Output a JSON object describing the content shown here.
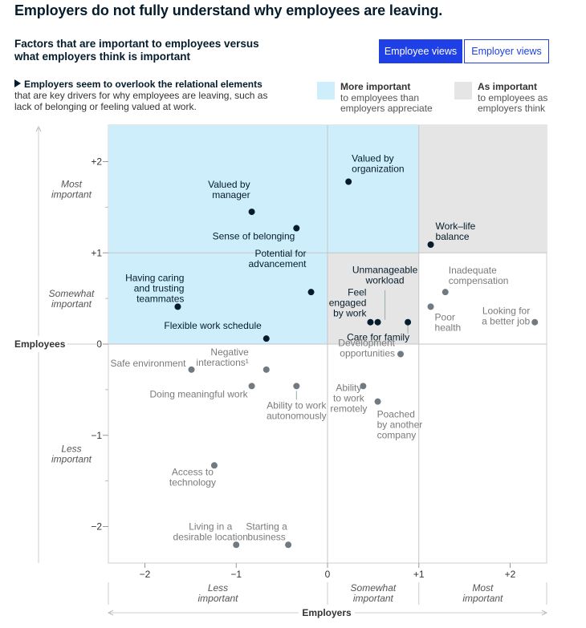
{
  "header": {
    "title": "Employers do not fully understand why employees are leaving.",
    "subtitle": "Factors that are important to employees versus what employers think is important"
  },
  "toggle": {
    "employee_label": "Employee views",
    "employer_label": "Employer views",
    "active": "Employee views"
  },
  "note": {
    "lead": "Employers seem to overlook the relational elements",
    "rest": "that are key drivers for why employees are leaving, such as lack of belonging or feeling valued at work."
  },
  "legend": {
    "more": {
      "title": "More important",
      "line1": "to employees than",
      "line2": "employers appreciate",
      "color": "#cfeefb"
    },
    "same": {
      "title": "As important",
      "line1": "to employees as",
      "line2": "employers think",
      "color": "#e5e5e5"
    }
  },
  "chart_data": {
    "type": "scatter",
    "xlabel": "Employers",
    "ylabel": "Employees",
    "xlim": [
      -2.4,
      2.4
    ],
    "ylim": [
      -2.4,
      2.4
    ],
    "x_ticks": [
      {
        "value": -2,
        "label": "−2"
      },
      {
        "value": -1,
        "label": "−1"
      },
      {
        "value": 0,
        "label": "0"
      },
      {
        "value": 1,
        "label": "+1"
      },
      {
        "value": 2,
        "label": "+2"
      }
    ],
    "y_ticks": [
      {
        "value": 2,
        "label": "+2"
      },
      {
        "value": 1,
        "label": "+1"
      },
      {
        "value": 0,
        "label": "0"
      },
      {
        "value": -1,
        "label": "−1"
      },
      {
        "value": -2,
        "label": "−2"
      }
    ],
    "x_bands": [
      {
        "label_lines": [
          "Less",
          "important"
        ],
        "from": -2.4,
        "to": 0
      },
      {
        "label_lines": [
          "Somewhat",
          "important"
        ],
        "from": 0,
        "to": 1
      },
      {
        "label_lines": [
          "Most",
          "important"
        ],
        "from": 1,
        "to": 2.4
      }
    ],
    "y_bands": [
      {
        "label_lines": [
          "Most",
          "important"
        ],
        "from": 1,
        "to": 2.4
      },
      {
        "label_lines": [
          "Somewhat",
          "important"
        ],
        "from": 0,
        "to": 1
      },
      {
        "label_lines": [
          "Less",
          "important"
        ],
        "from": -2.4,
        "to": 0
      }
    ],
    "regions": [
      {
        "category": "more",
        "x": [
          -2.4,
          1
        ],
        "y": [
          0,
          2.4
        ]
      },
      {
        "category": "same",
        "x": [
          0,
          1
        ],
        "y": [
          0,
          1
        ]
      },
      {
        "category": "same",
        "x": [
          1,
          2.4
        ],
        "y": [
          1,
          2.4
        ]
      }
    ],
    "points": [
      {
        "label_lines": [
          "Valued by",
          "organization"
        ],
        "x": 0.23,
        "y": 1.78,
        "highlight": true
      },
      {
        "label_lines": [
          "Valued by",
          "manager"
        ],
        "x": -0.83,
        "y": 1.45,
        "highlight": true
      },
      {
        "label_lines": [
          "Sense of belonging"
        ],
        "x": -0.34,
        "y": 1.27,
        "highlight": true
      },
      {
        "label_lines": [
          "Work–life",
          "balance"
        ],
        "x": 1.13,
        "y": 1.09,
        "highlight": true
      },
      {
        "label_lines": [
          "Having caring",
          "and trusting",
          "teammates"
        ],
        "x": -1.64,
        "y": 0.41,
        "highlight": true
      },
      {
        "label_lines": [
          "Potential for",
          "advancement"
        ],
        "x": -0.18,
        "y": 0.57,
        "highlight": true
      },
      {
        "label_lines": [
          "Flexible work schedule"
        ],
        "x": -0.67,
        "y": 0.06,
        "highlight": true
      },
      {
        "label_lines": [
          "Unmanageable",
          "workload"
        ],
        "x": 0.55,
        "y": 0.24,
        "highlight": true
      },
      {
        "label_lines": [
          "Feel",
          "engaged",
          "by work"
        ],
        "x": 0.47,
        "y": 0.24,
        "highlight": true
      },
      {
        "label_lines": [
          "Care for family"
        ],
        "x": 0.88,
        "y": 0.24,
        "highlight": true
      },
      {
        "label_lines": [
          "Inadequate",
          "compensation"
        ],
        "x": 1.29,
        "y": 0.57,
        "highlight": false
      },
      {
        "label_lines": [
          "Poor",
          "health"
        ],
        "x": 1.13,
        "y": 0.41,
        "highlight": false
      },
      {
        "label_lines": [
          "Looking for",
          "a better job"
        ],
        "x": 2.27,
        "y": 0.24,
        "highlight": false
      },
      {
        "label_lines": [
          "Safe environment"
        ],
        "x": -1.49,
        "y": -0.28,
        "highlight": false
      },
      {
        "label_lines": [
          "Negative",
          "interactions¹"
        ],
        "x": -0.67,
        "y": -0.28,
        "highlight": false
      },
      {
        "label_lines": [
          "Doing meaningful work"
        ],
        "x": -0.83,
        "y": -0.46,
        "highlight": false
      },
      {
        "label_lines": [
          "Ability to work",
          "autonomously"
        ],
        "x": -0.34,
        "y": -0.46,
        "highlight": false
      },
      {
        "label_lines": [
          "Development",
          "opportunities"
        ],
        "x": 0.8,
        "y": -0.11,
        "highlight": false
      },
      {
        "label_lines": [
          "Ability",
          "to work",
          "remotely"
        ],
        "x": 0.39,
        "y": -0.46,
        "highlight": false
      },
      {
        "label_lines": [
          "Poached",
          "by another",
          "company"
        ],
        "x": 0.55,
        "y": -0.63,
        "highlight": false
      },
      {
        "label_lines": [
          "Access to",
          "technology"
        ],
        "x": -1.24,
        "y": -1.33,
        "highlight": false
      },
      {
        "label_lines": [
          "Living in a",
          "desirable location"
        ],
        "x": -1.0,
        "y": -2.2,
        "highlight": false
      },
      {
        "label_lines": [
          "Starting a",
          "business"
        ],
        "x": -0.43,
        "y": -2.2,
        "highlight": false
      }
    ]
  }
}
